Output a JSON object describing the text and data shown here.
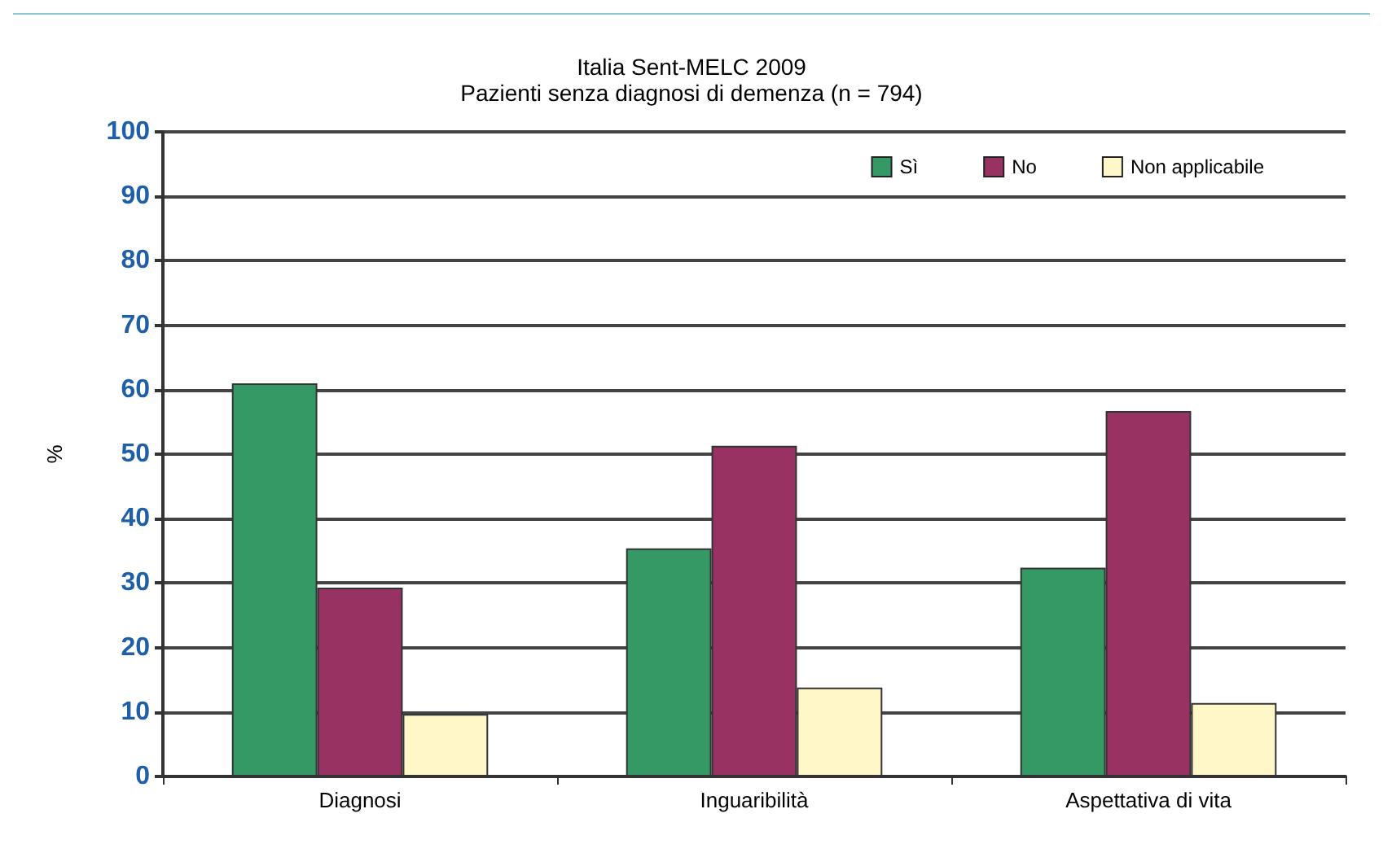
{
  "chart_data": {
    "type": "bar",
    "title": "Italia Sent-MELC 2009",
    "subtitle": "Pazienti senza diagnosi di demenza (n = 794)",
    "ylabel": "%",
    "categories": [
      "Diagnosi",
      "Inguaribilità",
      "Aspettativa di vita"
    ],
    "series": [
      {
        "name": "Sì",
        "color": "#359966",
        "values": [
          61,
          35.4,
          32.4
        ]
      },
      {
        "name": "No",
        "color": "#983262",
        "values": [
          29.3,
          51.3,
          56.7
        ]
      },
      {
        "name": "Non applicabile",
        "color": "#fff7c8",
        "values": [
          9.7,
          13.8,
          11.4
        ]
      }
    ],
    "ylim": [
      0,
      100
    ],
    "yticks": [
      0,
      10,
      20,
      30,
      40,
      50,
      60,
      70,
      80,
      90,
      100
    ],
    "grid": "y",
    "legend": "top right"
  }
}
